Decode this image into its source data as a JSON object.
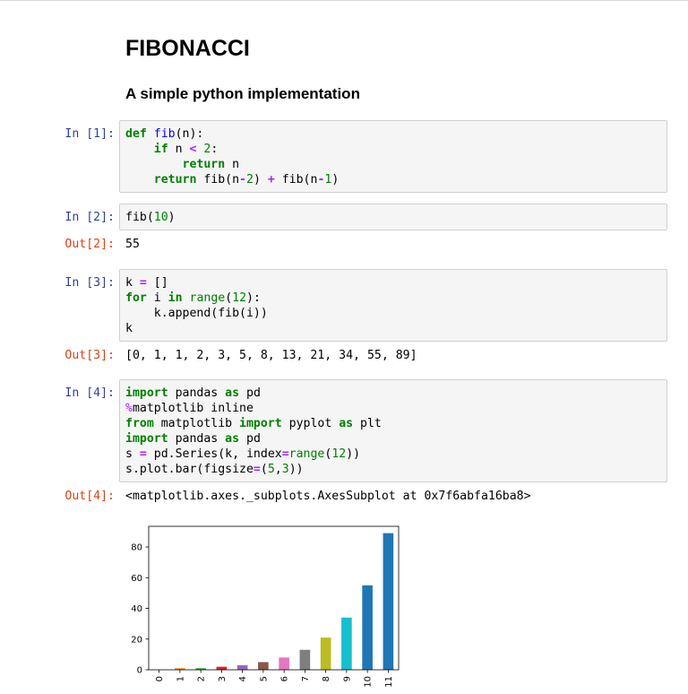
{
  "notebook": {
    "title": "FIBONACCI",
    "subtitle": "A simple python implementation"
  },
  "cells": [
    {
      "prompt": "In [1]:",
      "lines": [
        [
          [
            "k",
            "def"
          ],
          [
            "t",
            " "
          ],
          [
            "nf",
            "fib"
          ],
          [
            "t",
            "(n):"
          ]
        ],
        [
          [
            "t",
            "    "
          ],
          [
            "k",
            "if"
          ],
          [
            "t",
            " n "
          ],
          [
            "o",
            "<"
          ],
          [
            "t",
            " "
          ],
          [
            "mi",
            "2"
          ],
          [
            "t",
            ":"
          ]
        ],
        [
          [
            "t",
            "        "
          ],
          [
            "k",
            "return"
          ],
          [
            "t",
            " n"
          ]
        ],
        [
          [
            "t",
            "    "
          ],
          [
            "k",
            "return"
          ],
          [
            "t",
            " fib(n"
          ],
          [
            "o",
            "-"
          ],
          [
            "mi",
            "2"
          ],
          [
            "t",
            ") "
          ],
          [
            "o",
            "+"
          ],
          [
            "t",
            " fib(n"
          ],
          [
            "o",
            "-"
          ],
          [
            "mi",
            "1"
          ],
          [
            "t",
            ")"
          ]
        ]
      ]
    },
    {
      "prompt": "In [2]:",
      "lines": [
        [
          [
            "t",
            "fib("
          ],
          [
            "mi",
            "10"
          ],
          [
            "t",
            ")"
          ]
        ]
      ],
      "out_prompt": "Out[2]:",
      "output": "55"
    },
    {
      "prompt": "In [3]:",
      "lines": [
        [
          [
            "t",
            "k "
          ],
          [
            "o",
            "="
          ],
          [
            "t",
            " []"
          ]
        ],
        [
          [
            "k",
            "for"
          ],
          [
            "t",
            " i "
          ],
          [
            "k",
            "in"
          ],
          [
            "t",
            " "
          ],
          [
            "nb2",
            "range"
          ],
          [
            "t",
            "("
          ],
          [
            "mi",
            "12"
          ],
          [
            "t",
            "):"
          ]
        ],
        [
          [
            "t",
            "    k.append(fib(i))"
          ]
        ],
        [
          [
            "t",
            "k"
          ]
        ]
      ],
      "out_prompt": "Out[3]:",
      "output": "[0, 1, 1, 2, 3, 5, 8, 13, 21, 34, 55, 89]"
    },
    {
      "prompt": "In [4]:",
      "lines": [
        [
          [
            "k",
            "import"
          ],
          [
            "t",
            " pandas "
          ],
          [
            "k",
            "as"
          ],
          [
            "t",
            " pd"
          ]
        ],
        [
          [
            "mg",
            "%"
          ],
          [
            "t",
            "matplotlib inline"
          ]
        ],
        [
          [
            "k",
            "from"
          ],
          [
            "t",
            " matplotlib "
          ],
          [
            "k",
            "import"
          ],
          [
            "t",
            " pyplot "
          ],
          [
            "k",
            "as"
          ],
          [
            "t",
            " plt"
          ]
        ],
        [
          [
            "k",
            "import"
          ],
          [
            "t",
            " pandas "
          ],
          [
            "k",
            "as"
          ],
          [
            "t",
            " pd"
          ]
        ],
        [
          [
            "t",
            "s "
          ],
          [
            "o",
            "="
          ],
          [
            "t",
            " pd.Series(k, index"
          ],
          [
            "o",
            "="
          ],
          [
            "nb2",
            "range"
          ],
          [
            "t",
            "("
          ],
          [
            "mi",
            "12"
          ],
          [
            "t",
            "))"
          ]
        ],
        [
          [
            "t",
            "s.plot.bar(figsize"
          ],
          [
            "o",
            "="
          ],
          [
            "t",
            "("
          ],
          [
            "mi",
            "5"
          ],
          [
            "t",
            ","
          ],
          [
            "mi",
            "3"
          ],
          [
            "t",
            "))"
          ]
        ]
      ],
      "out_prompt": "Out[4]:",
      "output": "<matplotlib.axes._subplots.AxesSubplot at 0x7f6abfa16ba8>"
    }
  ],
  "chart_data": {
    "type": "bar",
    "categories": [
      "0",
      "1",
      "2",
      "3",
      "4",
      "5",
      "6",
      "7",
      "8",
      "9",
      "10",
      "11"
    ],
    "values": [
      0,
      1,
      1,
      2,
      3,
      5,
      8,
      13,
      21,
      34,
      55,
      89
    ],
    "colors": [
      "#1f77b4",
      "#ff7f0e",
      "#2ca02c",
      "#d62728",
      "#9467bd",
      "#8c564b",
      "#e377c2",
      "#7f7f7f",
      "#bcbd22",
      "#17becf",
      "#1f77b4",
      "#1f77b4"
    ],
    "yticks": [
      0,
      20,
      40,
      60,
      80
    ],
    "ylim": [
      0,
      93.45
    ],
    "title": "",
    "xlabel": "",
    "ylabel": "",
    "grid": false
  }
}
